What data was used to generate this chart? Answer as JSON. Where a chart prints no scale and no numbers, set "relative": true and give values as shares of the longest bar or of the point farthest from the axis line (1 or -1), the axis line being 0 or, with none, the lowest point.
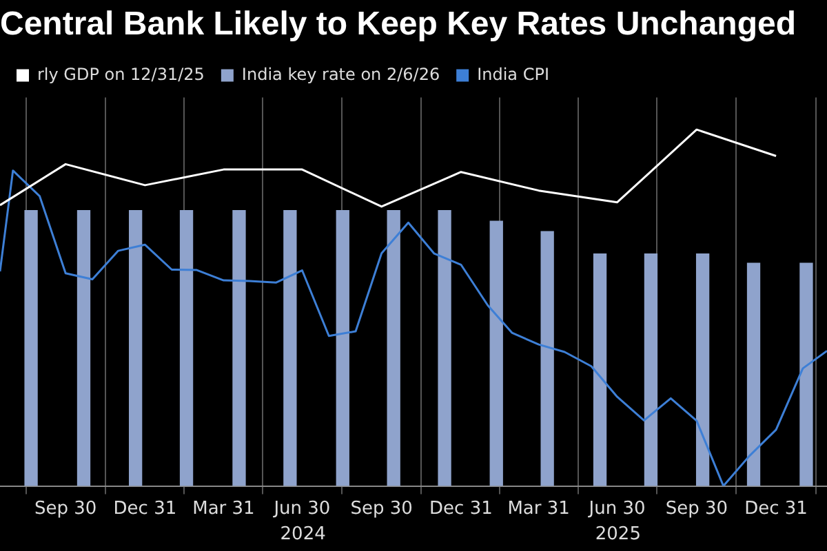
{
  "chart_data": {
    "type": "line",
    "title": "Central Bank Likely to Keep Key Rates Unchanged",
    "relative": true,
    "legend": "top left",
    "grid": "x",
    "marker": "none",
    "line_style": "solid",
    "xlim": [
      "2023-07-16",
      "2026-02-28"
    ],
    "xticks": [
      {
        "value": "2023-09-30",
        "label": "Sep 30"
      },
      {
        "value": "2023-12-31",
        "label": "Dec 31"
      },
      {
        "value": "2024-03-31",
        "label": "Mar 31"
      },
      {
        "value": "2024-06-30",
        "label": "Jun 30"
      },
      {
        "value": "2024-09-30",
        "label": "Sep 30"
      },
      {
        "value": "2024-12-31",
        "label": "Dec 31"
      },
      {
        "value": "2025-03-31",
        "label": "Mar 31"
      },
      {
        "value": "2025-06-30",
        "label": "Jun 30"
      },
      {
        "value": "2025-09-30",
        "label": "Sep 30"
      },
      {
        "value": "2025-12-31",
        "label": "Dec 31"
      }
    ],
    "x2lim": [
      "2023-07-16",
      "2026-02-28"
    ],
    "x2ticks": [
      {
        "value": "2024-07-01",
        "label": "2024"
      },
      {
        "value": "2025-07-01",
        "label": "2025"
      }
    ],
    "series": [
      {
        "name": "rly GDP on 12/31/25",
        "color": "#ffffff",
        "x": [
          "2023-07-16",
          "2023-09-30",
          "2023-12-31",
          "2024-03-31",
          "2024-06-30",
          "2024-09-30",
          "2024-12-31",
          "2025-03-31",
          "2025-06-30",
          "2025-09-30",
          "2025-12-31"
        ],
        "values": [
          0.788,
          0.903,
          0.844,
          0.888,
          0.888,
          0.784,
          0.881,
          0.829,
          0.796,
          1,
          0.926
        ]
      },
      {
        "name": "India key rate on 2/6/26",
        "type": "bar",
        "color": "#8fa3cc",
        "x": [
          "2023-08-21",
          "2023-10-21",
          "2023-12-20",
          "2024-02-17",
          "2024-04-18",
          "2024-06-16",
          "2024-08-16",
          "2024-10-14",
          "2024-12-12",
          "2025-02-10",
          "2025-04-10",
          "2025-06-10",
          "2025-08-08",
          "2025-10-07",
          "2025-12-05",
          "2026-02-04"
        ],
        "values": [
          0.773,
          0.773,
          0.773,
          0.773,
          0.773,
          0.773,
          0.773,
          0.773,
          0.773,
          0.743,
          0.714,
          0.651,
          0.651,
          0.651,
          0.625,
          0.625
        ]
      },
      {
        "name": "India CPI",
        "color": "#3d7fd6",
        "x": [
          "2023-07-16",
          "2023-07-31",
          "2023-08-31",
          "2023-09-30",
          "2023-10-31",
          "2023-11-30",
          "2023-12-31",
          "2024-01-31",
          "2024-02-29",
          "2024-03-31",
          "2024-04-30",
          "2024-05-31",
          "2024-06-30",
          "2024-07-31",
          "2024-08-31",
          "2024-09-30",
          "2024-10-31",
          "2024-11-30",
          "2024-12-31",
          "2025-01-31",
          "2025-02-28",
          "2025-03-31",
          "2025-04-30",
          "2025-05-31",
          "2025-06-30",
          "2025-07-31",
          "2025-08-31",
          "2025-09-30",
          "2025-10-31",
          "2025-11-30",
          "2025-12-31",
          "2026-01-31",
          "2026-02-28"
        ],
        "values": [
          0.602,
          0.885,
          0.813,
          0.597,
          0.58,
          0.66,
          0.677,
          0.607,
          0.606,
          0.577,
          0.575,
          0.571,
          0.605,
          0.421,
          0.434,
          0.653,
          0.739,
          0.652,
          0.621,
          0.507,
          0.43,
          0.397,
          0.376,
          0.336,
          0.25,
          0.184,
          0.246,
          0.183,
          0,
          0.084,
          0.158,
          0.33,
          0.379
        ]
      }
    ]
  }
}
